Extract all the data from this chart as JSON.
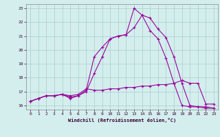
{
  "title": "",
  "xlabel": "Windchill (Refroidissement éolien,°C)",
  "background_color": "#d4eeee",
  "grid_color": "#aacccc",
  "line_color": "#990099",
  "x": [
    0,
    1,
    2,
    3,
    4,
    5,
    6,
    7,
    8,
    9,
    10,
    11,
    12,
    13,
    14,
    15,
    16,
    17,
    18,
    19,
    20,
    21,
    22,
    23
  ],
  "curve1": [
    16.3,
    16.5,
    16.7,
    16.7,
    16.8,
    16.7,
    16.8,
    17.2,
    17.1,
    17.1,
    17.2,
    17.2,
    17.3,
    17.3,
    17.4,
    17.4,
    17.5,
    17.5,
    17.6,
    17.8,
    17.6,
    17.6,
    16.1,
    16.1
  ],
  "curve2": [
    16.3,
    16.5,
    16.7,
    16.7,
    16.8,
    16.6,
    16.7,
    17.0,
    18.3,
    19.5,
    20.8,
    21.0,
    21.1,
    21.6,
    22.5,
    22.3,
    21.5,
    20.9,
    19.5,
    17.6,
    16.0,
    15.9,
    15.9,
    15.8
  ],
  "curve3": [
    16.3,
    16.5,
    16.7,
    16.7,
    16.8,
    16.5,
    16.7,
    17.1,
    19.5,
    20.2,
    20.8,
    21.0,
    21.1,
    23.0,
    22.5,
    21.4,
    20.8,
    19.4,
    17.6,
    16.0,
    15.9,
    15.9,
    15.8,
    15.8
  ],
  "ylim": [
    15.7,
    23.3
  ],
  "yticks": [
    16,
    17,
    18,
    19,
    20,
    21,
    22,
    23
  ],
  "xlim": [
    -0.5,
    23.5
  ],
  "xtick_labels": [
    "0",
    "1",
    "2",
    "3",
    "4",
    "5",
    "6",
    "7",
    "8",
    "9",
    "10",
    "11",
    "12",
    "13",
    "14",
    "15",
    "16",
    "17",
    "18",
    "19",
    "20",
    "21",
    "22",
    "23"
  ]
}
